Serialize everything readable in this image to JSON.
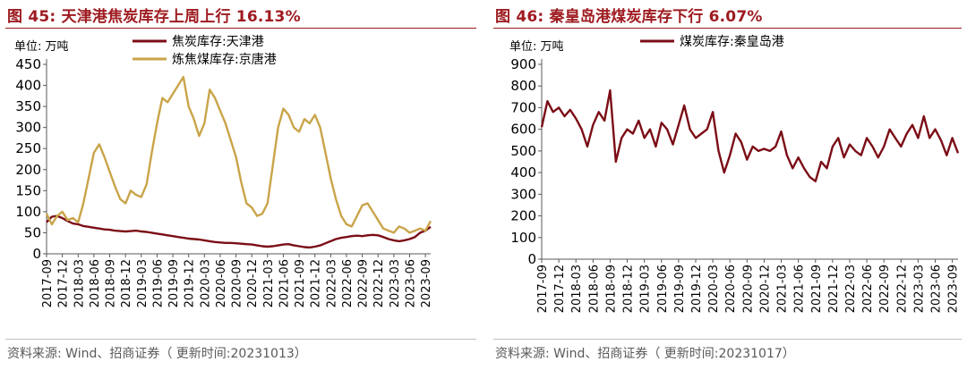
{
  "left": {
    "title": "图 45:  天津港焦炭库存上周上行 16.13%",
    "source": "资料来源:  Wind、招商证券（ 更新时间:20231013）"
  },
  "right": {
    "title": "图 46:  秦皇岛港煤炭库存下行 6.07%",
    "source": "资料来源:  Wind、招商证券（ 更新时间:20231017）"
  },
  "chart_data": [
    {
      "type": "line",
      "unit_label": "单位:  万吨",
      "ylim": [
        0,
        450
      ],
      "yticks": [
        0,
        50,
        100,
        150,
        200,
        250,
        300,
        350,
        400,
        450
      ],
      "x_start": "2017-09",
      "x_end": "2023-10",
      "x_tick_labels": [
        "2017-09",
        "2017-12",
        "2018-03",
        "2018-06",
        "2018-09",
        "2018-12",
        "2019-03",
        "2019-06",
        "2019-09",
        "2019-12",
        "2020-03",
        "2020-06",
        "2020-09",
        "2020-12",
        "2021-03",
        "2021-06",
        "2021-09",
        "2021-12",
        "2022-03",
        "2022-06",
        "2022-09",
        "2022-12",
        "2023-03",
        "2023-06",
        "2023-09"
      ],
      "legend_position": "top-center",
      "grid": false,
      "series": [
        {
          "name": "焦炭库存:天津港",
          "color": "#7b0d16",
          "points": [
            [
              "2017-09",
              75
            ],
            [
              "2017-10",
              88
            ],
            [
              "2017-11",
              90
            ],
            [
              "2017-12",
              85
            ],
            [
              "2018-01",
              78
            ],
            [
              "2018-02",
              72
            ],
            [
              "2018-03",
              70
            ],
            [
              "2018-04",
              66
            ],
            [
              "2018-05",
              64
            ],
            [
              "2018-06",
              62
            ],
            [
              "2018-07",
              60
            ],
            [
              "2018-08",
              58
            ],
            [
              "2018-09",
              57
            ],
            [
              "2018-10",
              55
            ],
            [
              "2018-11",
              54
            ],
            [
              "2018-12",
              53
            ],
            [
              "2019-01",
              54
            ],
            [
              "2019-02",
              55
            ],
            [
              "2019-03",
              53
            ],
            [
              "2019-04",
              52
            ],
            [
              "2019-05",
              50
            ],
            [
              "2019-06",
              48
            ],
            [
              "2019-07",
              46
            ],
            [
              "2019-08",
              44
            ],
            [
              "2019-09",
              42
            ],
            [
              "2019-10",
              40
            ],
            [
              "2019-11",
              38
            ],
            [
              "2019-12",
              36
            ],
            [
              "2020-01",
              35
            ],
            [
              "2020-02",
              34
            ],
            [
              "2020-03",
              32
            ],
            [
              "2020-04",
              30
            ],
            [
              "2020-05",
              28
            ],
            [
              "2020-06",
              27
            ],
            [
              "2020-07",
              26
            ],
            [
              "2020-08",
              26
            ],
            [
              "2020-09",
              25
            ],
            [
              "2020-10",
              24
            ],
            [
              "2020-11",
              23
            ],
            [
              "2020-12",
              22
            ],
            [
              "2021-01",
              20
            ],
            [
              "2021-02",
              18
            ],
            [
              "2021-03",
              17
            ],
            [
              "2021-04",
              18
            ],
            [
              "2021-05",
              20
            ],
            [
              "2021-06",
              22
            ],
            [
              "2021-07",
              23
            ],
            [
              "2021-08",
              20
            ],
            [
              "2021-09",
              18
            ],
            [
              "2021-10",
              16
            ],
            [
              "2021-11",
              15
            ],
            [
              "2021-12",
              17
            ],
            [
              "2022-01",
              20
            ],
            [
              "2022-02",
              25
            ],
            [
              "2022-03",
              30
            ],
            [
              "2022-04",
              35
            ],
            [
              "2022-05",
              38
            ],
            [
              "2022-06",
              40
            ],
            [
              "2022-07",
              42
            ],
            [
              "2022-08",
              43
            ],
            [
              "2022-09",
              42
            ],
            [
              "2022-10",
              44
            ],
            [
              "2022-11",
              45
            ],
            [
              "2022-12",
              44
            ],
            [
              "2023-01",
              40
            ],
            [
              "2023-02",
              35
            ],
            [
              "2023-03",
              32
            ],
            [
              "2023-04",
              30
            ],
            [
              "2023-05",
              32
            ],
            [
              "2023-06",
              35
            ],
            [
              "2023-07",
              40
            ],
            [
              "2023-08",
              50
            ],
            [
              "2023-09",
              55
            ],
            [
              "2023-10",
              64
            ]
          ]
        },
        {
          "name": "炼焦煤库存:京唐港",
          "color": "#c9a449",
          "points": [
            [
              "2017-09",
              95
            ],
            [
              "2017-10",
              70
            ],
            [
              "2017-11",
              90
            ],
            [
              "2017-12",
              100
            ],
            [
              "2018-01",
              80
            ],
            [
              "2018-02",
              85
            ],
            [
              "2018-03",
              75
            ],
            [
              "2018-04",
              120
            ],
            [
              "2018-05",
              180
            ],
            [
              "2018-06",
              240
            ],
            [
              "2018-07",
              260
            ],
            [
              "2018-08",
              230
            ],
            [
              "2018-09",
              195
            ],
            [
              "2018-10",
              160
            ],
            [
              "2018-11",
              130
            ],
            [
              "2018-12",
              120
            ],
            [
              "2019-01",
              150
            ],
            [
              "2019-02",
              140
            ],
            [
              "2019-03",
              135
            ],
            [
              "2019-04",
              165
            ],
            [
              "2019-05",
              240
            ],
            [
              "2019-06",
              310
            ],
            [
              "2019-07",
              370
            ],
            [
              "2019-08",
              360
            ],
            [
              "2019-09",
              380
            ],
            [
              "2019-10",
              400
            ],
            [
              "2019-11",
              420
            ],
            [
              "2019-12",
              350
            ],
            [
              "2020-01",
              320
            ],
            [
              "2020-02",
              280
            ],
            [
              "2020-03",
              310
            ],
            [
              "2020-04",
              390
            ],
            [
              "2020-05",
              370
            ],
            [
              "2020-06",
              340
            ],
            [
              "2020-07",
              310
            ],
            [
              "2020-08",
              270
            ],
            [
              "2020-09",
              230
            ],
            [
              "2020-10",
              170
            ],
            [
              "2020-11",
              120
            ],
            [
              "2020-12",
              110
            ],
            [
              "2021-01",
              90
            ],
            [
              "2021-02",
              95
            ],
            [
              "2021-03",
              120
            ],
            [
              "2021-04",
              210
            ],
            [
              "2021-05",
              300
            ],
            [
              "2021-06",
              345
            ],
            [
              "2021-07",
              330
            ],
            [
              "2021-08",
              300
            ],
            [
              "2021-09",
              290
            ],
            [
              "2021-10",
              320
            ],
            [
              "2021-11",
              310
            ],
            [
              "2021-12",
              330
            ],
            [
              "2022-01",
              300
            ],
            [
              "2022-02",
              240
            ],
            [
              "2022-03",
              180
            ],
            [
              "2022-04",
              130
            ],
            [
              "2022-05",
              90
            ],
            [
              "2022-06",
              70
            ],
            [
              "2022-07",
              65
            ],
            [
              "2022-08",
              90
            ],
            [
              "2022-09",
              115
            ],
            [
              "2022-10",
              120
            ],
            [
              "2022-11",
              100
            ],
            [
              "2022-12",
              80
            ],
            [
              "2023-01",
              60
            ],
            [
              "2023-02",
              55
            ],
            [
              "2023-03",
              50
            ],
            [
              "2023-04",
              65
            ],
            [
              "2023-05",
              60
            ],
            [
              "2023-06",
              50
            ],
            [
              "2023-07",
              55
            ],
            [
              "2023-08",
              60
            ],
            [
              "2023-09",
              55
            ],
            [
              "2023-10",
              78
            ]
          ]
        }
      ]
    },
    {
      "type": "line",
      "unit_label": "单位:  万吨",
      "ylim": [
        0,
        900
      ],
      "yticks": [
        0,
        100,
        200,
        300,
        400,
        500,
        600,
        700,
        800,
        900
      ],
      "x_start": "2017-09",
      "x_end": "2023-10",
      "x_tick_labels": [
        "2017-09",
        "2017-12",
        "2018-03",
        "2018-06",
        "2018-09",
        "2018-12",
        "2019-03",
        "2019-06",
        "2019-09",
        "2019-12",
        "2020-03",
        "2020-06",
        "2020-09",
        "2020-12",
        "2021-03",
        "2021-06",
        "2021-09",
        "2021-12",
        "2022-03",
        "2022-06",
        "2022-09",
        "2022-12",
        "2023-03",
        "2023-06",
        "2023-09"
      ],
      "legend_position": "top-center",
      "grid": false,
      "series": [
        {
          "name": "煤炭库存:秦皇岛港",
          "color": "#7b0d16",
          "points": [
            [
              "2017-09",
              610
            ],
            [
              "2017-10",
              730
            ],
            [
              "2017-11",
              680
            ],
            [
              "2017-12",
              700
            ],
            [
              "2018-01",
              660
            ],
            [
              "2018-02",
              690
            ],
            [
              "2018-03",
              650
            ],
            [
              "2018-04",
              600
            ],
            [
              "2018-05",
              520
            ],
            [
              "2018-06",
              620
            ],
            [
              "2018-07",
              680
            ],
            [
              "2018-08",
              640
            ],
            [
              "2018-09",
              780
            ],
            [
              "2018-10",
              450
            ],
            [
              "2018-11",
              560
            ],
            [
              "2018-12",
              600
            ],
            [
              "2019-01",
              580
            ],
            [
              "2019-02",
              640
            ],
            [
              "2019-03",
              560
            ],
            [
              "2019-04",
              600
            ],
            [
              "2019-05",
              520
            ],
            [
              "2019-06",
              630
            ],
            [
              "2019-07",
              600
            ],
            [
              "2019-08",
              530
            ],
            [
              "2019-09",
              620
            ],
            [
              "2019-10",
              710
            ],
            [
              "2019-11",
              600
            ],
            [
              "2019-12",
              560
            ],
            [
              "2020-01",
              580
            ],
            [
              "2020-02",
              600
            ],
            [
              "2020-03",
              680
            ],
            [
              "2020-04",
              500
            ],
            [
              "2020-05",
              400
            ],
            [
              "2020-06",
              480
            ],
            [
              "2020-07",
              580
            ],
            [
              "2020-08",
              540
            ],
            [
              "2020-09",
              460
            ],
            [
              "2020-10",
              520
            ],
            [
              "2020-11",
              500
            ],
            [
              "2020-12",
              510
            ],
            [
              "2021-01",
              500
            ],
            [
              "2021-02",
              520
            ],
            [
              "2021-03",
              590
            ],
            [
              "2021-04",
              480
            ],
            [
              "2021-05",
              420
            ],
            [
              "2021-06",
              470
            ],
            [
              "2021-07",
              420
            ],
            [
              "2021-08",
              380
            ],
            [
              "2021-09",
              360
            ],
            [
              "2021-10",
              450
            ],
            [
              "2021-11",
              420
            ],
            [
              "2021-12",
              520
            ],
            [
              "2022-01",
              560
            ],
            [
              "2022-02",
              470
            ],
            [
              "2022-03",
              530
            ],
            [
              "2022-04",
              500
            ],
            [
              "2022-05",
              480
            ],
            [
              "2022-06",
              560
            ],
            [
              "2022-07",
              520
            ],
            [
              "2022-08",
              470
            ],
            [
              "2022-09",
              520
            ],
            [
              "2022-10",
              600
            ],
            [
              "2022-11",
              560
            ],
            [
              "2022-12",
              520
            ],
            [
              "2023-01",
              580
            ],
            [
              "2023-02",
              620
            ],
            [
              "2023-03",
              560
            ],
            [
              "2023-04",
              660
            ],
            [
              "2023-05",
              560
            ],
            [
              "2023-06",
              600
            ],
            [
              "2023-07",
              550
            ],
            [
              "2023-08",
              480
            ],
            [
              "2023-09",
              560
            ],
            [
              "2023-10",
              490
            ]
          ]
        }
      ]
    }
  ]
}
